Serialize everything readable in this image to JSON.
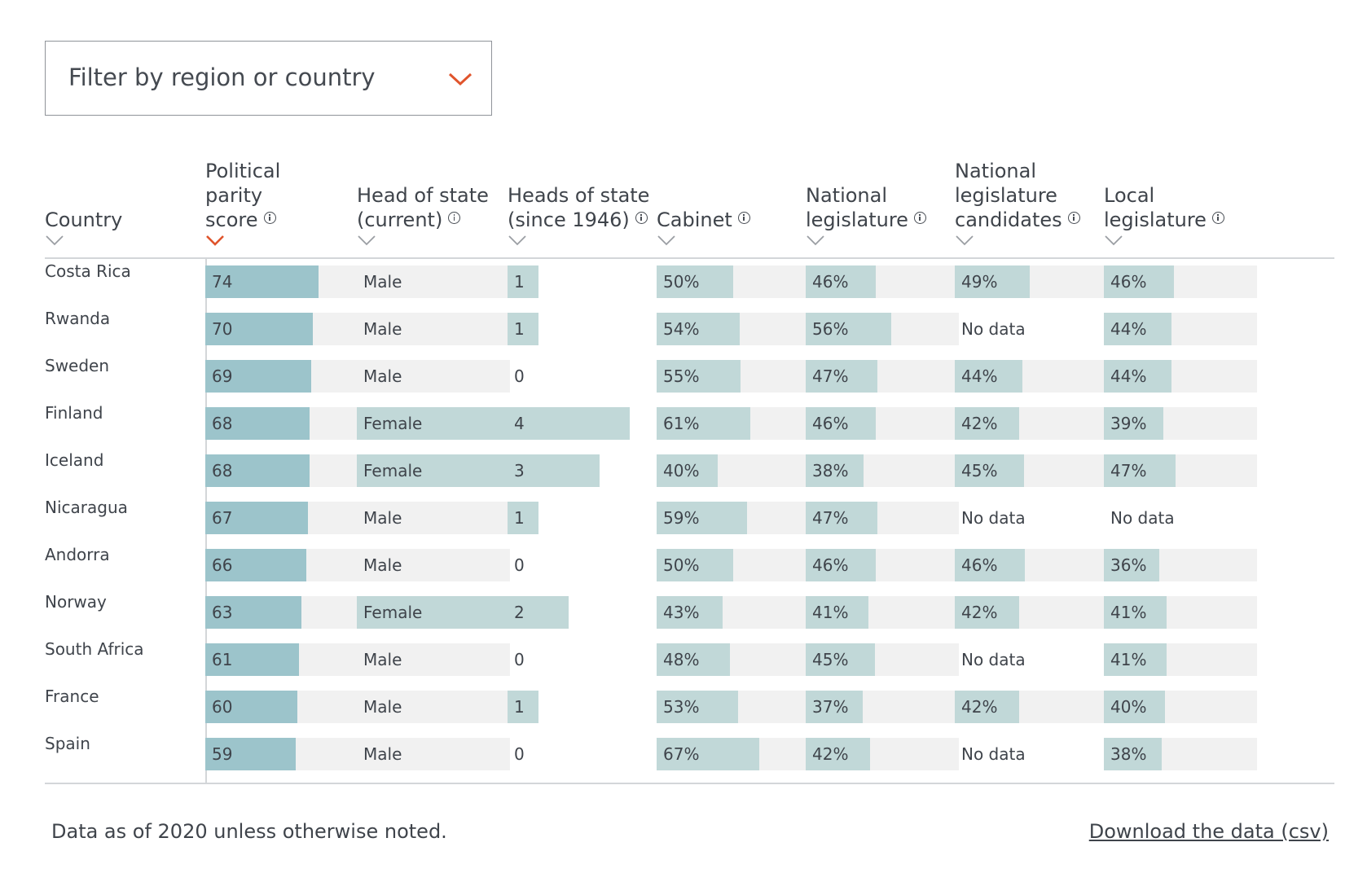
{
  "colors": {
    "accent": "#e0542c",
    "score_bar": "#9cc4cb",
    "bar": "#c1d8d8",
    "track": "#f1f1f1",
    "text": "#3f444b"
  },
  "filter": {
    "placeholder": "Filter by region or country",
    "icon": "chevron-down-icon"
  },
  "columns": [
    {
      "key": "country",
      "lines": [
        "Country"
      ],
      "info": false,
      "sorted": false
    },
    {
      "key": "score",
      "lines": [
        "Political",
        "parity",
        "score"
      ],
      "info": true,
      "sorted": true
    },
    {
      "key": "head_current",
      "lines": [
        "Head of state",
        "(current)"
      ],
      "info": true,
      "sorted": false
    },
    {
      "key": "heads_since",
      "lines": [
        "Heads of state",
        "(since 1946)"
      ],
      "info": true,
      "sorted": false
    },
    {
      "key": "cabinet",
      "lines": [
        "Cabinet"
      ],
      "info": true,
      "sorted": false
    },
    {
      "key": "national_leg",
      "lines": [
        "National",
        "legislature"
      ],
      "info": true,
      "sorted": false
    },
    {
      "key": "candidates",
      "lines": [
        "National",
        "legislature",
        "candidates"
      ],
      "info": true,
      "sorted": false
    },
    {
      "key": "local_leg",
      "lines": [
        "Local",
        "legislature"
      ],
      "info": true,
      "sorted": false
    }
  ],
  "rows": [
    {
      "country": "Costa Rica",
      "score": "74",
      "head_current": "Male",
      "heads_since": "1",
      "cabinet": "50%",
      "national_leg": "46%",
      "candidates": "49%",
      "local_leg": "46%"
    },
    {
      "country": "Rwanda",
      "score": "70",
      "head_current": "Male",
      "heads_since": "1",
      "cabinet": "54%",
      "national_leg": "56%",
      "candidates": "No data",
      "local_leg": "44%"
    },
    {
      "country": "Sweden",
      "score": "69",
      "head_current": "Male",
      "heads_since": "0",
      "cabinet": "55%",
      "national_leg": "47%",
      "candidates": "44%",
      "local_leg": "44%"
    },
    {
      "country": "Finland",
      "score": "68",
      "head_current": "Female",
      "heads_since": "4",
      "cabinet": "61%",
      "national_leg": "46%",
      "candidates": "42%",
      "local_leg": "39%"
    },
    {
      "country": "Iceland",
      "score": "68",
      "head_current": "Female",
      "heads_since": "3",
      "cabinet": "40%",
      "national_leg": "38%",
      "candidates": "45%",
      "local_leg": "47%"
    },
    {
      "country": "Nicaragua",
      "score": "67",
      "head_current": "Male",
      "heads_since": "1",
      "cabinet": "59%",
      "national_leg": "47%",
      "candidates": "No data",
      "local_leg": "No data"
    },
    {
      "country": "Andorra",
      "score": "66",
      "head_current": "Male",
      "heads_since": "0",
      "cabinet": "50%",
      "national_leg": "46%",
      "candidates": "46%",
      "local_leg": "36%"
    },
    {
      "country": "Norway",
      "score": "63",
      "head_current": "Female",
      "heads_since": "2",
      "cabinet": "43%",
      "national_leg": "41%",
      "candidates": "42%",
      "local_leg": "41%"
    },
    {
      "country": "South Africa",
      "score": "61",
      "head_current": "Male",
      "heads_since": "0",
      "cabinet": "48%",
      "national_leg": "45%",
      "candidates": "No data",
      "local_leg": "41%"
    },
    {
      "country": "France",
      "score": "60",
      "head_current": "Male",
      "heads_since": "1",
      "cabinet": "53%",
      "national_leg": "37%",
      "candidates": "42%",
      "local_leg": "40%"
    },
    {
      "country": "Spain",
      "score": "59",
      "head_current": "Male",
      "heads_since": "0",
      "cabinet": "67%",
      "national_leg": "42%",
      "candidates": "No data",
      "local_leg": "38%"
    }
  ],
  "footer": {
    "note": "Data as of 2020 unless otherwise noted.",
    "download": "Download the data (csv)"
  }
}
